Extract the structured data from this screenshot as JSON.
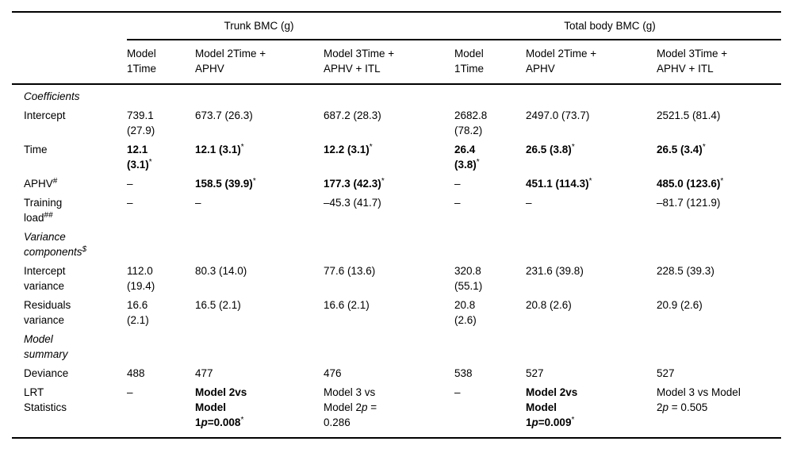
{
  "colors": {
    "text": "#000000",
    "rule": "#000000",
    "background": "#ffffff"
  },
  "table": {
    "groups": [
      {
        "label": "Trunk BMC (g)",
        "span": 3
      },
      {
        "label": "Total body BMC (g)",
        "span": 3
      }
    ],
    "column_headers": [
      "Model\n1Time",
      "Model 2Time +\nAPHV",
      "Model 3Time +\nAPHV + ITL",
      "Model\n1Time",
      "Model 2Time +\nAPHV",
      "Model 3Time +\nAPHV + ITL"
    ],
    "rows": [
      {
        "type": "section",
        "label": [
          {
            "t": "Coefficients",
            "i": true
          }
        ]
      },
      {
        "type": "data",
        "label": [
          {
            "t": "Intercept"
          }
        ],
        "cells": [
          [
            {
              "t": "739.1\n(27.9)"
            }
          ],
          [
            {
              "t": "673.7 (26.3)"
            }
          ],
          [
            {
              "t": "687.2 (28.3)"
            }
          ],
          [
            {
              "t": "2682.8\n(78.2)"
            }
          ],
          [
            {
              "t": "2497.0 (73.7)"
            }
          ],
          [
            {
              "t": "2521.5 (81.4)"
            }
          ]
        ]
      },
      {
        "type": "data",
        "label": [
          {
            "t": "Time"
          }
        ],
        "cells": [
          [
            {
              "t": "12.1\n(3.1)",
              "b": true
            },
            {
              "t": "*",
              "s": true
            }
          ],
          [
            {
              "t": "12.1 (3.1)",
              "b": true
            },
            {
              "t": "*",
              "s": true
            }
          ],
          [
            {
              "t": "12.2 (3.1)",
              "b": true
            },
            {
              "t": "*",
              "s": true
            }
          ],
          [
            {
              "t": "26.4\n(3.8)",
              "b": true
            },
            {
              "t": "*",
              "s": true
            }
          ],
          [
            {
              "t": "26.5 (3.8)",
              "b": true
            },
            {
              "t": "*",
              "s": true
            }
          ],
          [
            {
              "t": "26.5 (3.4)",
              "b": true
            },
            {
              "t": "*",
              "s": true
            }
          ]
        ]
      },
      {
        "type": "data",
        "label": [
          {
            "t": "APHV"
          },
          {
            "t": "#",
            "s": true
          }
        ],
        "cells": [
          [
            {
              "t": "–"
            }
          ],
          [
            {
              "t": "158.5 (39.9)",
              "b": true
            },
            {
              "t": "*",
              "s": true
            }
          ],
          [
            {
              "t": "177.3 (42.3)",
              "b": true
            },
            {
              "t": "*",
              "s": true
            }
          ],
          [
            {
              "t": "–"
            }
          ],
          [
            {
              "t": "451.1 (114.3)",
              "b": true
            },
            {
              "t": "*",
              "s": true
            }
          ],
          [
            {
              "t": "485.0 (123.6)",
              "b": true
            },
            {
              "t": "*",
              "s": true
            }
          ]
        ]
      },
      {
        "type": "data",
        "label": [
          {
            "t": "Training\nload"
          },
          {
            "t": "##",
            "s": true
          }
        ],
        "cells": [
          [
            {
              "t": "–"
            }
          ],
          [
            {
              "t": "–"
            }
          ],
          [
            {
              "t": "–45.3 (41.7)"
            }
          ],
          [
            {
              "t": "–"
            }
          ],
          [
            {
              "t": "–"
            }
          ],
          [
            {
              "t": "–81.7 (121.9)"
            }
          ]
        ]
      },
      {
        "type": "section",
        "label": [
          {
            "t": "Variance\ncomponents",
            "i": true
          },
          {
            "t": "$",
            "i": true,
            "s": true
          }
        ]
      },
      {
        "type": "data",
        "label": [
          {
            "t": "Intercept\nvariance"
          }
        ],
        "cells": [
          [
            {
              "t": "112.0\n(19.4)"
            }
          ],
          [
            {
              "t": "80.3 (14.0)"
            }
          ],
          [
            {
              "t": "77.6 (13.6)"
            }
          ],
          [
            {
              "t": "320.8\n(55.1)"
            }
          ],
          [
            {
              "t": "231.6 (39.8)"
            }
          ],
          [
            {
              "t": "228.5 (39.3)"
            }
          ]
        ]
      },
      {
        "type": "data",
        "label": [
          {
            "t": "Residuals\nvariance"
          }
        ],
        "cells": [
          [
            {
              "t": "16.6\n(2.1)"
            }
          ],
          [
            {
              "t": "16.5 (2.1)"
            }
          ],
          [
            {
              "t": "16.6 (2.1)"
            }
          ],
          [
            {
              "t": "20.8\n(2.6)"
            }
          ],
          [
            {
              "t": "20.8 (2.6)"
            }
          ],
          [
            {
              "t": "20.9 (2.6)"
            }
          ]
        ]
      },
      {
        "type": "section",
        "label": [
          {
            "t": "Model\nsummary",
            "i": true
          }
        ]
      },
      {
        "type": "data",
        "label": [
          {
            "t": "Deviance"
          }
        ],
        "cells": [
          [
            {
              "t": "488"
            }
          ],
          [
            {
              "t": "477"
            }
          ],
          [
            {
              "t": "476"
            }
          ],
          [
            {
              "t": "538"
            }
          ],
          [
            {
              "t": "527"
            }
          ],
          [
            {
              "t": "527"
            }
          ]
        ]
      },
      {
        "type": "data",
        "label": [
          {
            "t": "LRT\nStatistics"
          }
        ],
        "cells": [
          [
            {
              "t": "–"
            }
          ],
          [
            {
              "t": "Model 2vs\nModel\n1",
              "b": true
            },
            {
              "t": "p",
              "b": true,
              "i": true
            },
            {
              "t": "=0.008",
              "b": true
            },
            {
              "t": "*",
              "s": true
            }
          ],
          [
            {
              "t": "Model 3 vs\nModel 2"
            },
            {
              "t": "p",
              "i": true
            },
            {
              "t": " =\n0.286"
            }
          ],
          [
            {
              "t": "–"
            }
          ],
          [
            {
              "t": "Model 2vs\nModel\n1",
              "b": true
            },
            {
              "t": "p",
              "b": true,
              "i": true
            },
            {
              "t": "=0.009",
              "b": true
            },
            {
              "t": "*",
              "s": true
            }
          ],
          [
            {
              "t": "Model 3 vs Model\n2"
            },
            {
              "t": "p",
              "i": true
            },
            {
              "t": " = 0.505"
            }
          ]
        ]
      }
    ]
  }
}
